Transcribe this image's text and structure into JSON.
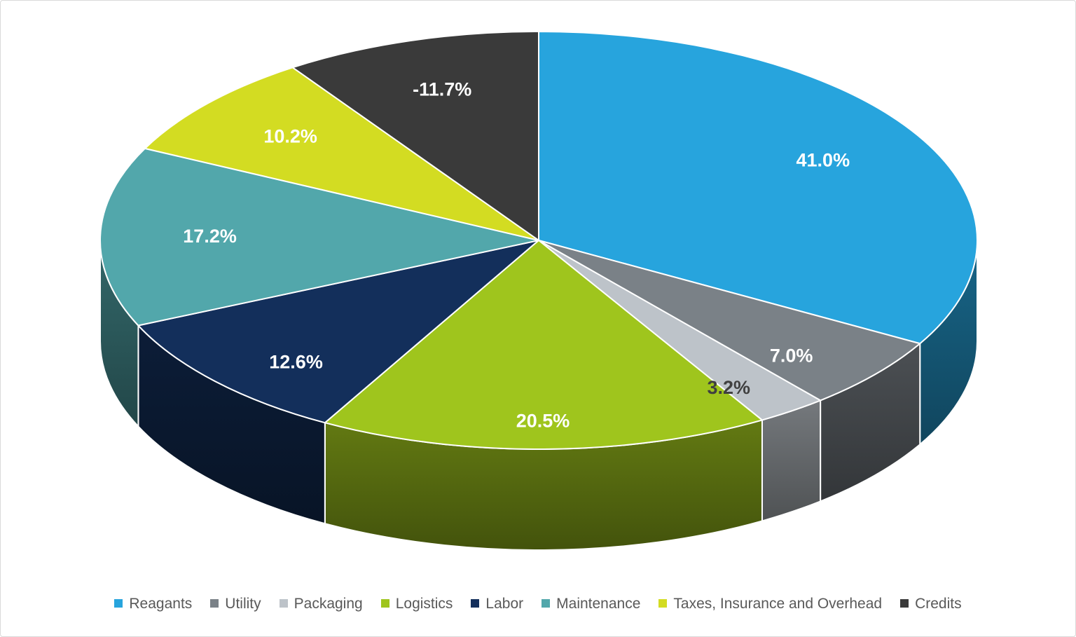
{
  "chart_data": {
    "type": "pie",
    "style": "3d",
    "title": "",
    "legend_position": "bottom",
    "direction": "clockwise",
    "start_angle_deg": 0,
    "categories": [
      "Reagants",
      "Utility",
      "Packaging",
      "Logistics",
      "Labor",
      "Maintenance",
      "Taxes, Insurance and Overhead",
      "Credits"
    ],
    "values": [
      41.0,
      7.0,
      3.2,
      20.5,
      12.6,
      17.2,
      10.2,
      -11.7
    ],
    "data_labels": [
      "41.0%",
      "7.0%",
      "3.2%",
      "20.5%",
      "12.6%",
      "17.2%",
      "10.2%",
      "-11.7%"
    ],
    "colors": [
      "#27A4DD",
      "#7A8187",
      "#BDC3C9",
      "#9FC51D",
      "#132F5B",
      "#52A7AB",
      "#D3DC22",
      "#3A3A3A"
    ],
    "label_colors": [
      "#FFFFFF",
      "#FFFFFF",
      "#404040",
      "#FFFFFF",
      "#FFFFFF",
      "#FFFFFF",
      "#FFFFFF",
      "#FFFFFF"
    ]
  }
}
